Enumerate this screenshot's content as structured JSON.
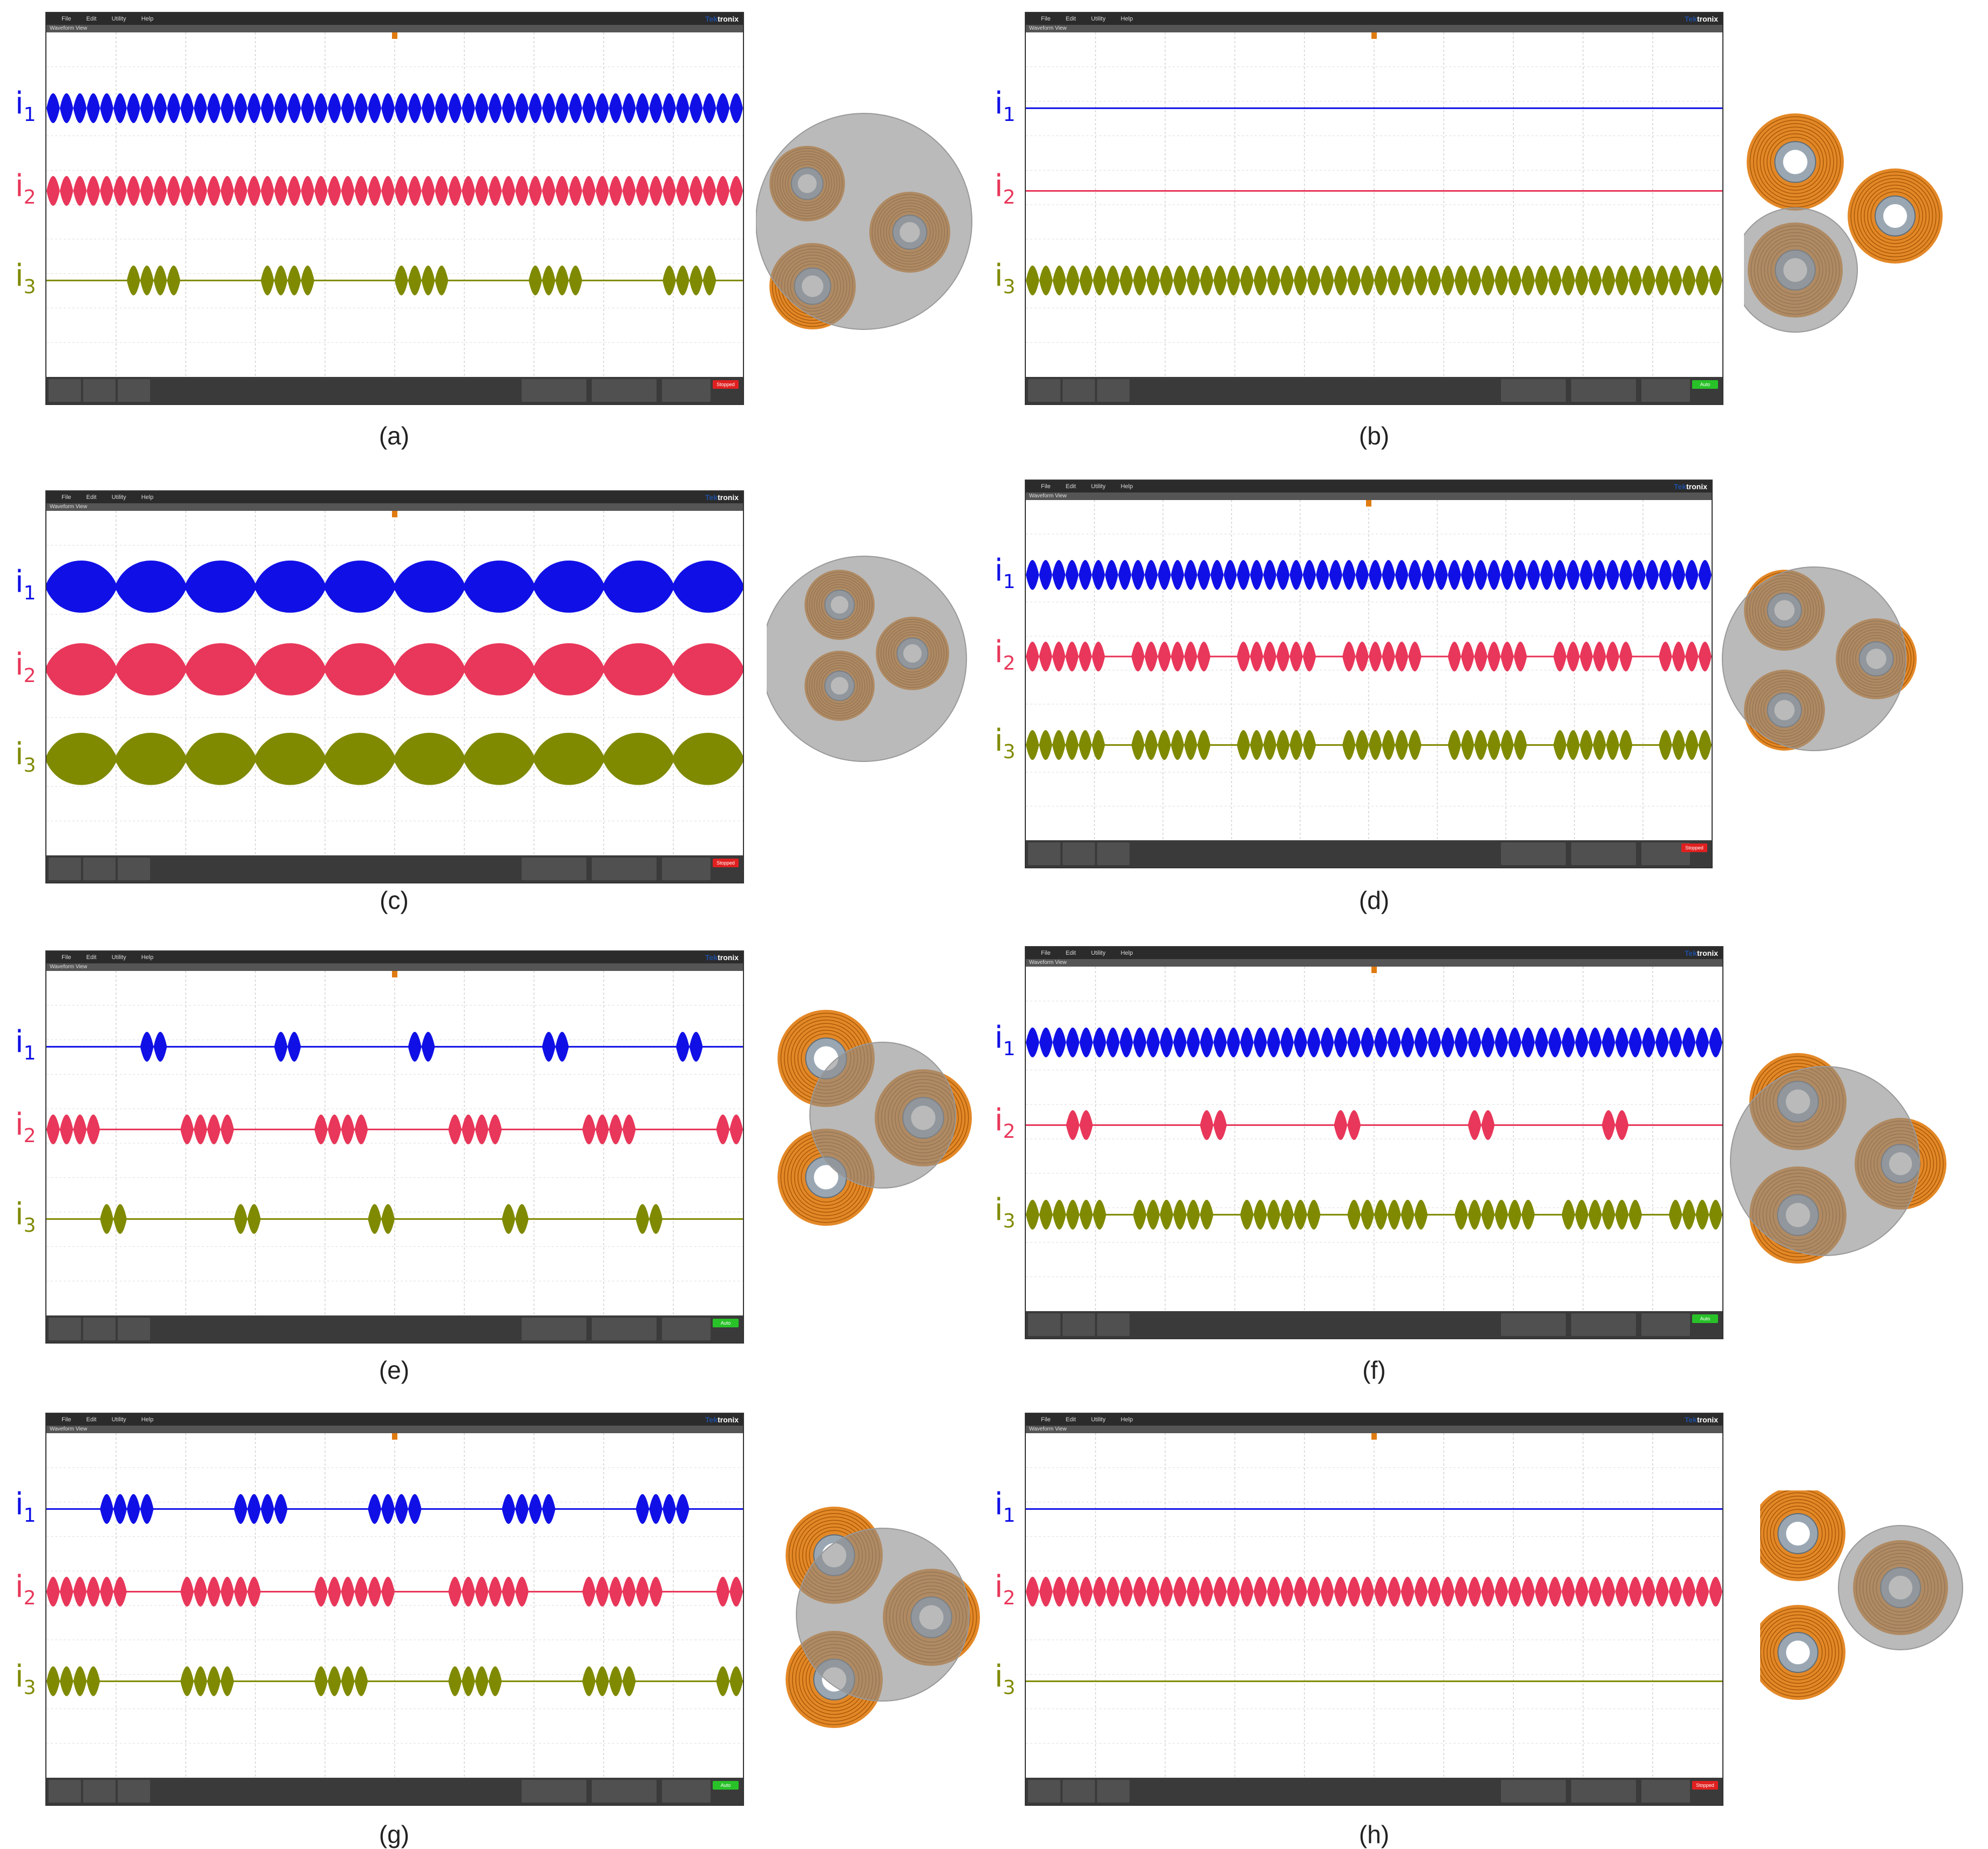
{
  "scope": {
    "menu": [
      "File",
      "Edit",
      "Utility",
      "Help"
    ],
    "brand_prefix": "Tek",
    "brand_suffix": "tronix",
    "view_title": "Waveform View"
  },
  "labels": {
    "i1": "i",
    "i2": "i",
    "i3": "i",
    "s1": "1",
    "s2": "2",
    "s3": "3"
  },
  "colors": {
    "i1": "#1010e6",
    "i2": "#e8375a",
    "i3": "#7f8a00",
    "coil": "#e07b10",
    "field": "#8c8c8c"
  },
  "panels": [
    {
      "caption": "(a)",
      "status": "Stopped",
      "status_color": "#e02020",
      "i1": {
        "type": "cont",
        "period": 20
      },
      "i2": {
        "type": "cont",
        "period": 20
      },
      "i3": {
        "type": "burst",
        "burst": 4,
        "gap": 6,
        "offset": 6
      },
      "coils": "a"
    },
    {
      "caption": "(b)",
      "status": "Auto",
      "status_color": "#28c228",
      "i1": {
        "type": "flat"
      },
      "i2": {
        "type": "flat"
      },
      "i3": {
        "type": "cont",
        "period": 20
      },
      "coils": "b"
    },
    {
      "caption": "(c)",
      "status": "Stopped",
      "status_color": "#e02020",
      "i1": {
        "type": "lobes",
        "n": 10
      },
      "i2": {
        "type": "lobes",
        "n": 10
      },
      "i3": {
        "type": "lobes",
        "n": 10
      },
      "coils": "c"
    },
    {
      "caption": "(d)",
      "status": "Stopped",
      "status_color": "#e02020",
      "i1": {
        "type": "cont",
        "period": 20
      },
      "i2": {
        "type": "burst",
        "burst": 6,
        "gap": 2,
        "offset": 0
      },
      "i3": {
        "type": "burst",
        "burst": 6,
        "gap": 2,
        "offset": 0
      },
      "coils": "d"
    },
    {
      "caption": "(e)",
      "status": "Auto",
      "status_color": "#28c228",
      "i1": {
        "type": "burst",
        "burst": 2,
        "gap": 8,
        "offset": 7
      },
      "i2": {
        "type": "burst",
        "burst": 4,
        "gap": 6,
        "offset": 0
      },
      "i3": {
        "type": "burst",
        "burst": 2,
        "gap": 8,
        "offset": 4
      },
      "coils": "e"
    },
    {
      "caption": "(f)",
      "status": "Auto",
      "status_color": "#28c228",
      "i1": {
        "type": "cont",
        "period": 20
      },
      "i2": {
        "type": "burst",
        "burst": 2,
        "gap": 8,
        "offset": 3
      },
      "i3": {
        "type": "burst",
        "burst": 6,
        "gap": 2,
        "offset": 0
      },
      "coils": "f"
    },
    {
      "caption": "(g)",
      "status": "Auto",
      "status_color": "#28c228",
      "i1": {
        "type": "burst",
        "burst": 4,
        "gap": 6,
        "offset": 4
      },
      "i2": {
        "type": "burst",
        "burst": 6,
        "gap": 4,
        "offset": 0
      },
      "i3": {
        "type": "burst",
        "burst": 4,
        "gap": 6,
        "offset": 0
      },
      "coils": "g"
    },
    {
      "caption": "(h)",
      "status": "Stopped",
      "status_color": "#e02020",
      "i1": {
        "type": "flat"
      },
      "i2": {
        "type": "cont",
        "period": 20
      },
      "i3": {
        "type": "flat"
      },
      "coils": "h"
    }
  ]
}
